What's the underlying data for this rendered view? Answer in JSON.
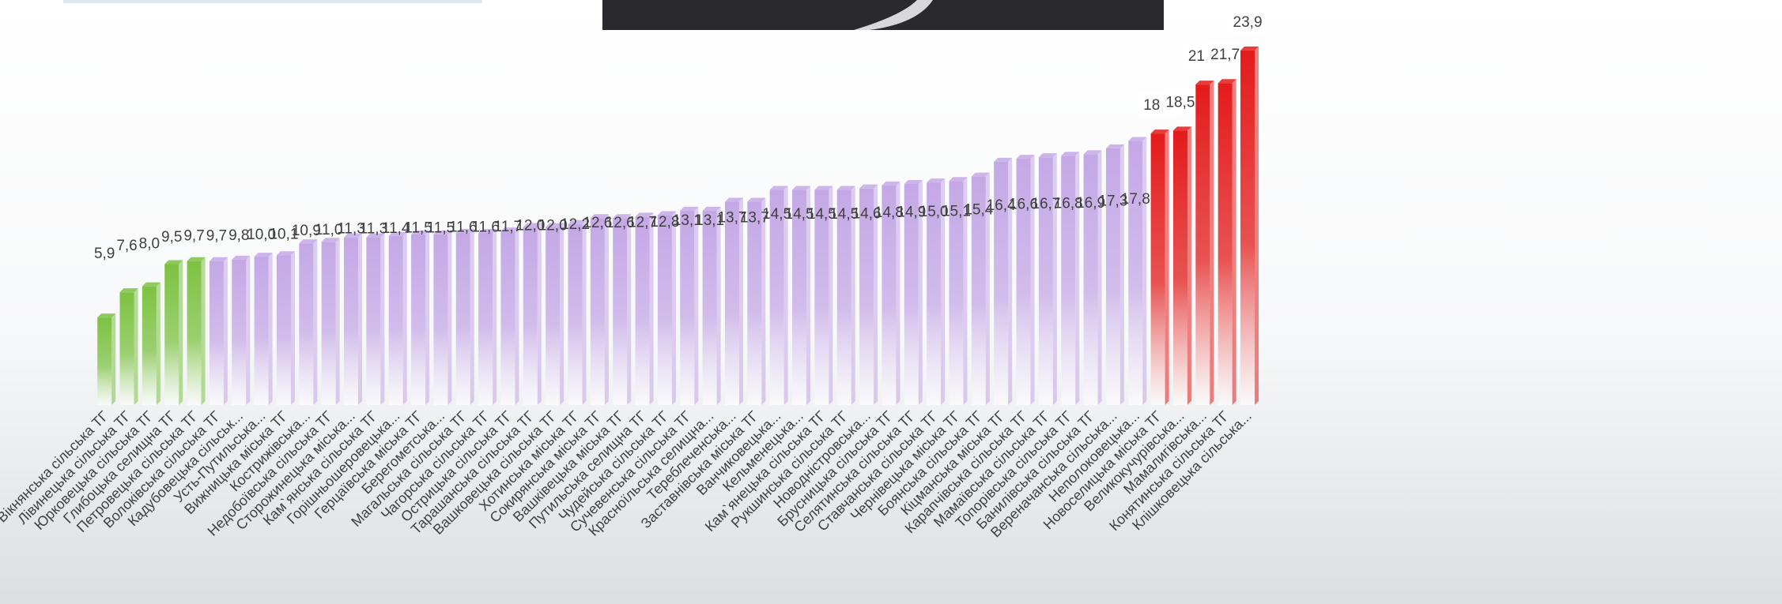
{
  "chart_data": {
    "type": "bar",
    "categories": [
      "Вікнянська сільська ТГ",
      "Лівинецька сільська ТГ",
      "Юрковецька сільська ТГ",
      "Глибоцька селищна ТГ",
      "Петровецька сільська ТГ",
      "Волоківська сільська ТГ",
      "Кадубовецька сільськ...",
      "Усть-Путильська...",
      "Вижницька міська ТГ",
      "Кострижівська...",
      "Недобоївська сільська ТГ",
      "Сторожинецька міська...",
      "Кам`янська сільська ТГ",
      "Горішньошеровецька...",
      "Герцаївська міська ТГ",
      "Берегометська...",
      "Магальська сільська ТГ",
      "Чагорська сільська ТГ",
      "Острицька сільська ТГ",
      "Тарашанська сільська ТГ",
      "Вашковецька сільська ТГ",
      "Хотинська міська ТГ",
      "Сокирянська міська ТГ",
      "Вашківецька міська ТГ",
      "Путильська селищна ТГ",
      "Чудейська сільська ТГ",
      "Сучевенська сільська ТГ",
      "Красноїльська селищна...",
      "Тереблеченська...",
      "Заставнівська міська ТГ",
      "Ванчиковецька...",
      "Кельменецька...",
      "Кам`янецька сільська ТГ",
      "Рукшинська сільська ТГ",
      "Новодністровська...",
      "Брусницька сільська ТГ",
      "Селятинська сільська ТГ",
      "Ставчанська сільська ТГ",
      "Чернівецька міська ТГ",
      "Боянська сільська ТГ",
      "Кіцманська міська ТГ",
      "Карапчівська сільська ТГ",
      "Мамаївська сільська ТГ",
      "Топорівська сільська ТГ",
      "Банилівська сільська ТГ",
      "Вереначанська сільська...",
      "Неполоковецька...",
      "Новоселицька міська ТГ",
      "Великокучурівська...",
      "Мамалигівська...",
      "Конятинська сільська ТГ",
      "Клішковецька сільська..."
    ],
    "values": [
      5.9,
      7.6,
      8.0,
      9.5,
      9.7,
      9.7,
      9.8,
      10.0,
      10.1,
      10.9,
      11.0,
      11.3,
      11.3,
      11.4,
      11.5,
      11.5,
      11.6,
      11.6,
      11.7,
      12.0,
      12.0,
      12.2,
      12.6,
      12.6,
      12.7,
      12.8,
      13.1,
      13.1,
      13.7,
      13.7,
      14.5,
      14.5,
      14.5,
      14.5,
      14.6,
      14.8,
      14.9,
      15.0,
      15.1,
      15.4,
      16.4,
      16.6,
      16.7,
      16.8,
      16.9,
      17.3,
      17.8,
      18.3,
      18.5,
      21.6,
      21.7,
      23.9
    ],
    "value_labels": [
      "5,9",
      "7,6",
      "8,0",
      "9,5",
      "9,7",
      "9,7",
      "9,8",
      "10,0",
      "10,1",
      "10,9",
      "11,0",
      "11,3",
      "11,3",
      "11,4",
      "11,5",
      "11,5",
      "11,6",
      "11,6",
      "11,7",
      "12,0",
      "12,0",
      "12,2",
      "12,6",
      "12,6",
      "12,7",
      "12,8",
      "13,1",
      "13,1",
      "13,7",
      "13,7",
      "14,5",
      "14,5",
      "14,5",
      "14,5",
      "14,6",
      "14,8",
      "14,9",
      "15,0",
      "15,1",
      "15,4",
      "16,4",
      "16,6",
      "16,7",
      "16,8",
      "16,9",
      "17,3",
      "17,8",
      "18,3",
      "18,5",
      "21,6",
      "21,7",
      "23,9"
    ],
    "colors": [
      "#7dc243",
      "#7dc243",
      "#7dc243",
      "#7dc243",
      "#7dc243",
      "#c4a8e6",
      "#c4a8e6",
      "#c4a8e6",
      "#c4a8e6",
      "#c4a8e6",
      "#c4a8e6",
      "#c4a8e6",
      "#c4a8e6",
      "#c4a8e6",
      "#c4a8e6",
      "#c4a8e6",
      "#c4a8e6",
      "#c4a8e6",
      "#c4a8e6",
      "#c4a8e6",
      "#c4a8e6",
      "#c4a8e6",
      "#c4a8e6",
      "#c4a8e6",
      "#c4a8e6",
      "#c4a8e6",
      "#c4a8e6",
      "#c4a8e6",
      "#c4a8e6",
      "#c4a8e6",
      "#c4a8e6",
      "#c4a8e6",
      "#c4a8e6",
      "#c4a8e6",
      "#c4a8e6",
      "#c4a8e6",
      "#c4a8e6",
      "#c4a8e6",
      "#c4a8e6",
      "#c4a8e6",
      "#c4a8e6",
      "#c4a8e6",
      "#c4a8e6",
      "#c4a8e6",
      "#c4a8e6",
      "#c4a8e6",
      "#c4a8e6",
      "#e31b1b",
      "#e31b1b",
      "#e31b1b",
      "#e31b1b",
      "#e31b1b"
    ],
    "ylim": [
      0,
      27.3
    ]
  }
}
